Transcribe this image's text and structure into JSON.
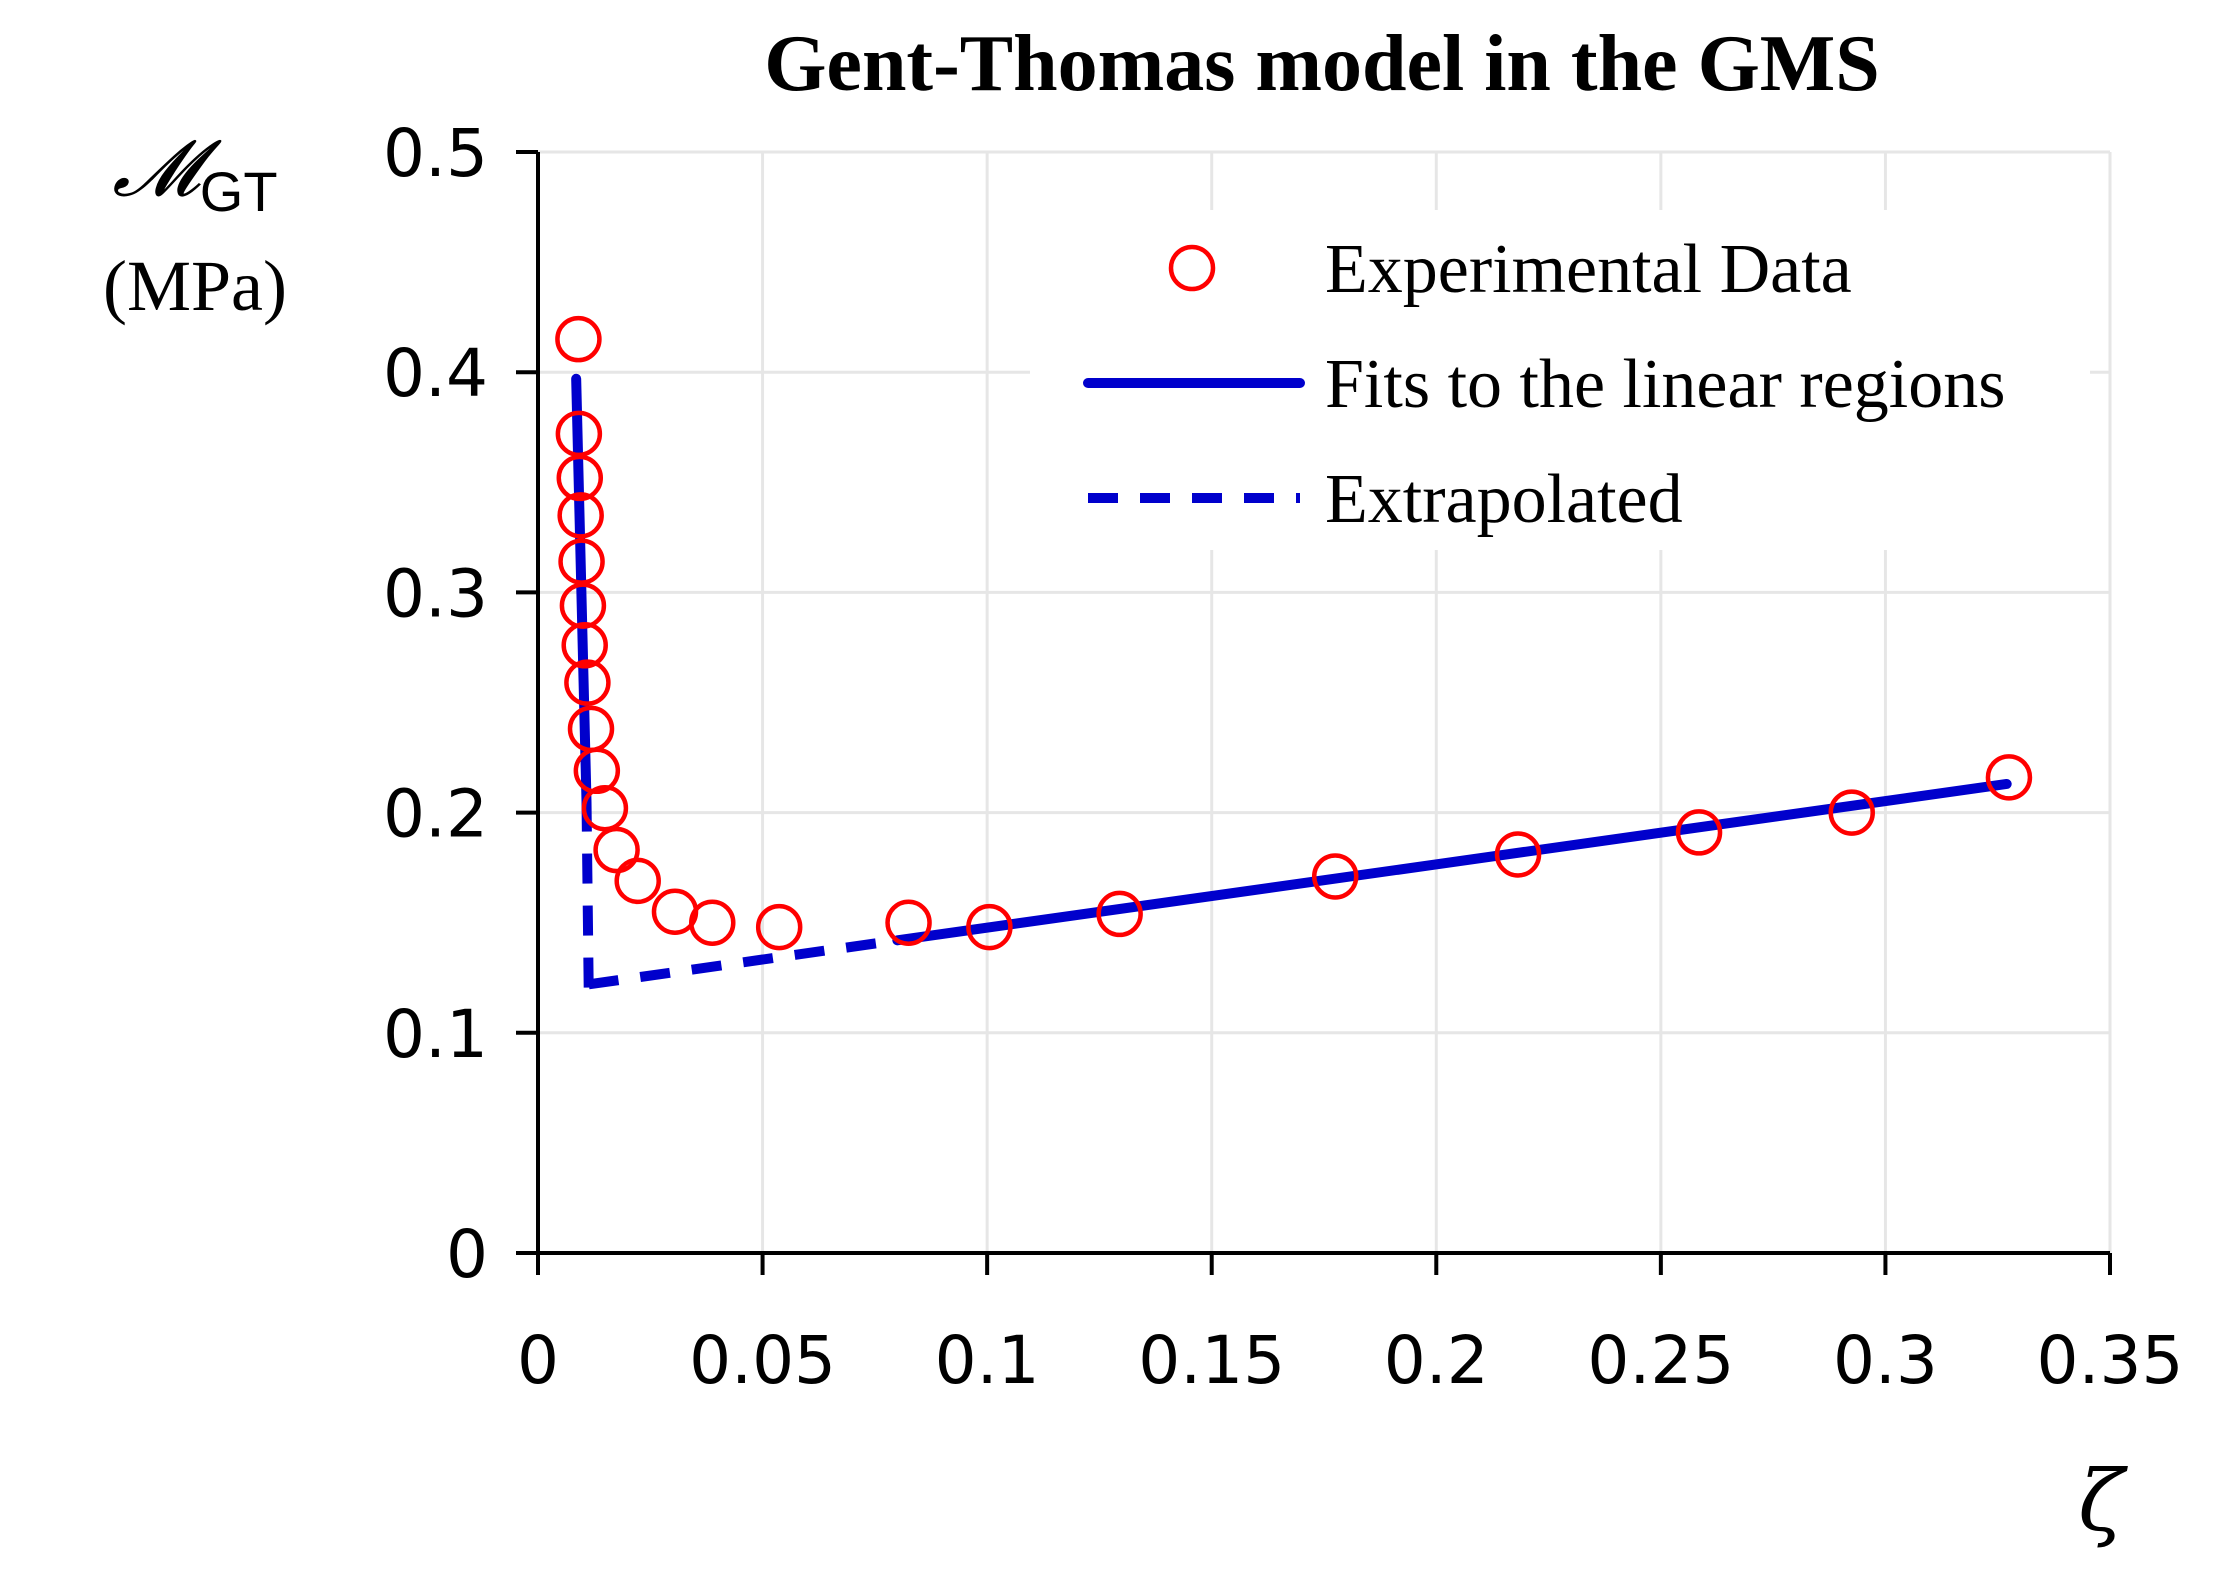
{
  "chart_data": {
    "type": "scatter",
    "title": "Gent-Thomas model in the GMS",
    "xlabel": "ζ",
    "ylabel": {
      "symbol": "𝓜",
      "subscript": "GT",
      "unit": "(MPa)"
    },
    "xlim": [
      0,
      0.35
    ],
    "ylim": [
      0,
      0.5
    ],
    "x_ticks": [
      0,
      0.05,
      0.1,
      0.15,
      0.2,
      0.25,
      0.3,
      0.35
    ],
    "x_tick_labels": [
      "0",
      "0.05",
      "0.1",
      "0.15",
      "0.2",
      "0.25",
      "0.3",
      "0.35"
    ],
    "y_ticks": [
      0,
      0.1,
      0.2,
      0.3,
      0.4,
      0.5
    ],
    "y_tick_labels": [
      "0",
      "0.1",
      "0.2",
      "0.3",
      "0.4",
      "0.5"
    ],
    "grid": true,
    "legend_position": "top-right",
    "series": [
      {
        "name": "Experimental Data",
        "kind": "markers",
        "color": "#ff0000",
        "x": [
          0.009,
          0.0091,
          0.0093,
          0.0095,
          0.0097,
          0.01,
          0.0104,
          0.011,
          0.0118,
          0.0131,
          0.0149,
          0.0175,
          0.0222,
          0.0305,
          0.0388,
          0.0537,
          0.0825,
          0.1005,
          0.1295,
          0.1775,
          0.2182,
          0.2585,
          0.2925,
          0.3275
        ],
        "y": [
          0.415,
          0.372,
          0.352,
          0.335,
          0.314,
          0.294,
          0.276,
          0.259,
          0.238,
          0.219,
          0.202,
          0.183,
          0.169,
          0.155,
          0.15,
          0.148,
          0.15,
          0.148,
          0.154,
          0.171,
          0.181,
          0.191,
          0.2,
          0.216
        ]
      },
      {
        "name": "Fits to the linear regions",
        "kind": "solid",
        "color": "#0000cc",
        "segments": [
          {
            "x": [
              0.0085,
              0.0108
            ],
            "y": [
              0.397,
              0.205
            ]
          },
          {
            "x": [
              0.08,
              0.327
            ],
            "y": [
              0.142,
              0.213
            ]
          }
        ]
      },
      {
        "name": "Extrapolated",
        "kind": "dashed",
        "color": "#0000cc",
        "segments": [
          {
            "x": [
              0.0108,
              0.0113
            ],
            "y": [
              0.205,
              0.118
            ]
          },
          {
            "x": [
              0.0113,
              0.08
            ],
            "y": [
              0.122,
              0.142
            ]
          }
        ]
      }
    ]
  }
}
